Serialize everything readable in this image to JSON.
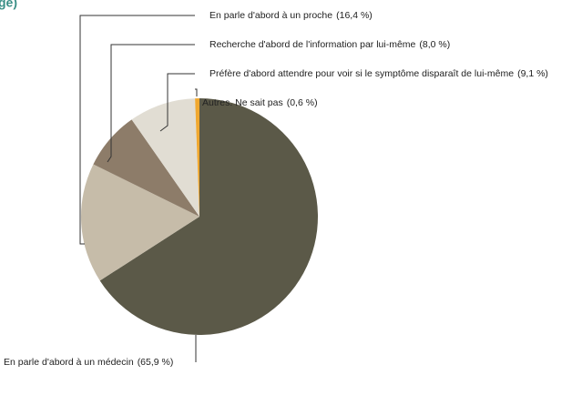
{
  "chart_data": {
    "type": "pie",
    "title": "ge)",
    "categories": [
      "En parle d'abord à un médecin",
      "En parle d'abord à un proche",
      "Recherche d'abord de l'information par lui-même",
      "Préfère d'abord attendre pour voir si le symptôme disparaît de lui-même",
      "Autres. Ne sait pas"
    ],
    "values": [
      65.9,
      16.4,
      8.0,
      9.1,
      0.6
    ],
    "value_labels": [
      "(65,9 %)",
      "(16,4 %)",
      "(8,0 %)",
      "(9,1 %)",
      "(0,6 %)"
    ],
    "colors": [
      "#5b5948",
      "#c6bca9",
      "#8d7c69",
      "#e1ddd3",
      "#f0a830"
    ]
  }
}
